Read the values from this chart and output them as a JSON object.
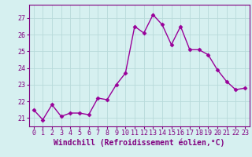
{
  "x": [
    0,
    1,
    2,
    3,
    4,
    5,
    6,
    7,
    8,
    9,
    10,
    11,
    12,
    13,
    14,
    15,
    16,
    17,
    18,
    19,
    20,
    21,
    22,
    23
  ],
  "y": [
    21.5,
    20.9,
    21.8,
    21.1,
    21.3,
    21.3,
    21.2,
    22.2,
    22.1,
    23.0,
    23.7,
    26.5,
    26.1,
    27.2,
    26.6,
    25.4,
    26.5,
    25.1,
    25.1,
    24.8,
    23.9,
    23.2,
    22.7,
    22.8
  ],
  "line_color": "#990099",
  "marker": "D",
  "marker_size": 2.5,
  "line_width": 1.0,
  "xlabel": "Windchill (Refroidissement éolien,°C)",
  "xlabel_fontsize": 7.0,
  "ylabel_ticks": [
    21,
    22,
    23,
    24,
    25,
    26,
    27
  ],
  "ylim": [
    20.5,
    27.8
  ],
  "xlim": [
    -0.5,
    23.5
  ],
  "xtick_labels": [
    "0",
    "1",
    "2",
    "3",
    "4",
    "5",
    "6",
    "7",
    "8",
    "9",
    "10",
    "11",
    "12",
    "13",
    "14",
    "15",
    "16",
    "17",
    "18",
    "19",
    "20",
    "21",
    "22",
    "23"
  ],
  "tick_fontsize": 6.0,
  "bg_color": "#d6f0f0",
  "grid_color": "#b8dada",
  "axes_color": "#800080",
  "title": ""
}
